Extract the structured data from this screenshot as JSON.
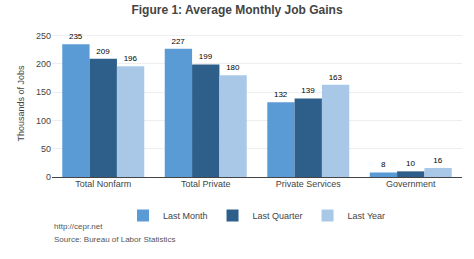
{
  "chart_data": {
    "type": "bar",
    "title": "Figure 1: Average Monthly Job Gains",
    "categories": [
      "Total Nonfarm",
      "Total Private",
      "Private Services",
      "Government"
    ],
    "series": [
      {
        "name": "Last Month",
        "color": "#5b9bd5",
        "values": [
          235,
          227,
          132,
          8
        ]
      },
      {
        "name": "Last Quarter",
        "color": "#2e5f8a",
        "values": [
          209,
          199,
          139,
          10
        ]
      },
      {
        "name": "Last Year",
        "color": "#a9c8e8",
        "values": [
          196,
          180,
          163,
          16
        ]
      }
    ],
    "ylabel": "Thousands of Jobs",
    "ylim": [
      0,
      260
    ],
    "yticks": [
      0,
      50,
      100,
      150,
      200,
      250
    ],
    "grid": true,
    "legend": "bottom",
    "data_labels": true,
    "annotations": [
      "http://cepr.net",
      "Source: Bureau of Labor Statistics"
    ]
  }
}
